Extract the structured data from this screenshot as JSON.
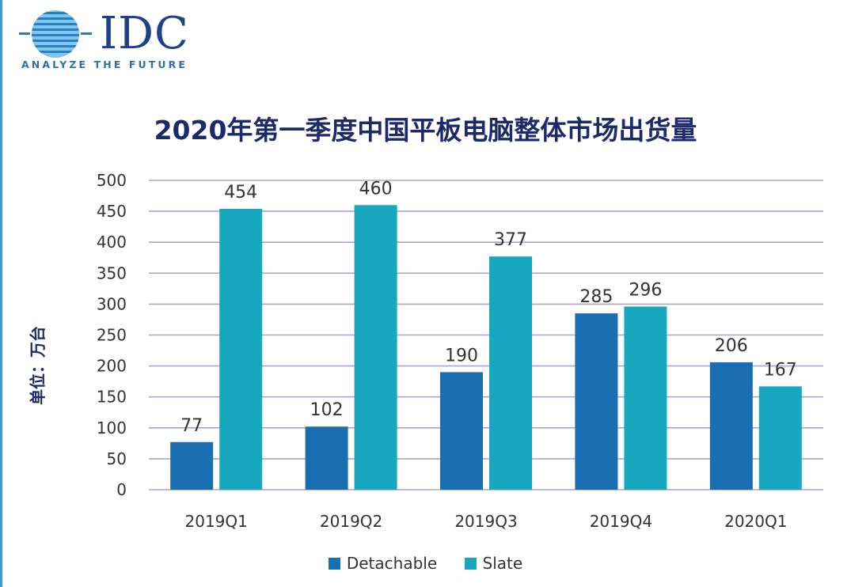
{
  "logo": {
    "name": "IDC",
    "tagline": "ANALYZE THE FUTURE"
  },
  "colors": {
    "detachable": "#1a6eb2",
    "slate": "#17a8bf",
    "grid": "#a9a3d6",
    "axis_text": "#333333",
    "title": "#1c2a6b"
  },
  "chart_data": {
    "type": "bar",
    "title": "2020年第一季度中国平板电脑整体市场出货量",
    "ylabel": "单位：万台",
    "xlabel": "",
    "categories": [
      "2019Q1",
      "2019Q2",
      "2019Q3",
      "2019Q4",
      "2020Q1"
    ],
    "series": [
      {
        "name": "Detachable",
        "values": [
          77,
          102,
          190,
          285,
          206
        ]
      },
      {
        "name": "Slate",
        "values": [
          454,
          460,
          377,
          296,
          167
        ]
      }
    ],
    "ylim": [
      0,
      500
    ],
    "yticks": [
      0,
      50,
      100,
      150,
      200,
      250,
      300,
      350,
      400,
      450,
      500
    ],
    "grid": true,
    "legend_position": "bottom"
  }
}
